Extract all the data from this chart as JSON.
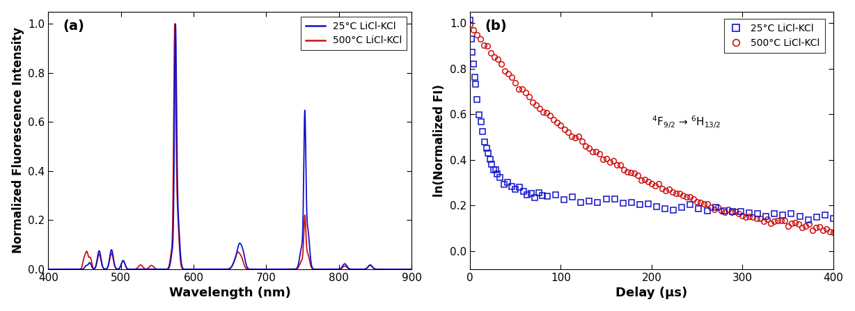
{
  "panel_a": {
    "title": "(a)",
    "xlabel": "Wavelength (nm)",
    "ylabel": "Normalized Fluorescence Intensity",
    "xlim": [
      400,
      900
    ],
    "ylim": [
      0,
      1.05
    ],
    "yticks": [
      0.0,
      0.2,
      0.4,
      0.6,
      0.8,
      1.0
    ],
    "xticks": [
      400,
      500,
      600,
      700,
      800,
      900
    ],
    "blue_color": "#1010CC",
    "red_color": "#CC1010",
    "legend_labels": [
      "25°C LiCl-KCl",
      "500°C LiCl-KCl"
    ]
  },
  "panel_b": {
    "title": "(b)",
    "xlabel": "Delay (μs)",
    "ylabel": "ln(Normalized FI)",
    "xlim": [
      0,
      400
    ],
    "ylim": [
      -0.08,
      1.05
    ],
    "yticks": [
      0.0,
      0.2,
      0.4,
      0.6,
      0.8,
      1.0
    ],
    "xticks": [
      0,
      100,
      200,
      300,
      400
    ],
    "blue_color": "#1010CC",
    "red_color": "#CC1010",
    "legend_labels": [
      "25°C LiCl-KCl",
      "500°C LiCl-KCl"
    ],
    "annotation": "$^4$F$_{9/2}$ → $^6$H$_{13/2}$"
  }
}
